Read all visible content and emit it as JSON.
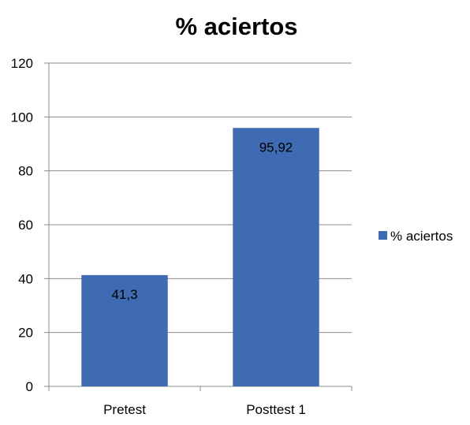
{
  "chart_data": {
    "type": "bar",
    "title": "% aciertos",
    "categories": [
      "Pretest",
      "Posttest 1"
    ],
    "series": [
      {
        "name": "% aciertos",
        "values": [
          41.3,
          95.92
        ],
        "labels": [
          "41,3",
          "95,92"
        ],
        "color": "#3E6BB1"
      }
    ],
    "xlabel": "",
    "ylabel": "",
    "ylim": [
      0,
      120
    ],
    "yticks": [
      0,
      20,
      40,
      60,
      80,
      100,
      120
    ],
    "grid": true,
    "legend": "right"
  }
}
